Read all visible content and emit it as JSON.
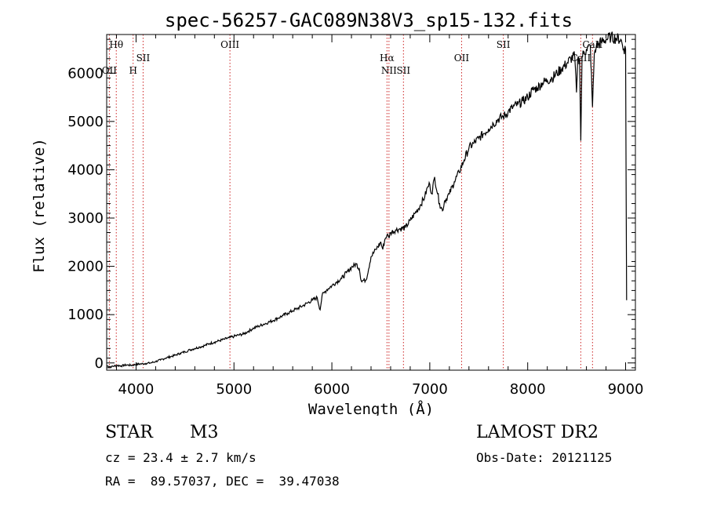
{
  "chart_data": {
    "type": "line",
    "title": "spec-56257-GAC089N38V3_sp15-132.fits",
    "xlabel": "Wavelength (Å)",
    "ylabel": "Flux (relative)",
    "xlim": [
      3700,
      9100
    ],
    "ylim": [
      -150,
      6800
    ],
    "xticks": [
      4000,
      5000,
      6000,
      7000,
      8000,
      9000
    ],
    "yticks": [
      0,
      1000,
      2000,
      3000,
      4000,
      5000,
      6000
    ],
    "grid": false,
    "spectral_lines": [
      {
        "label": "Hθ",
        "wavelength": 3798,
        "row": "top"
      },
      {
        "label": "OII",
        "wavelength": 3727,
        "row": "mid"
      },
      {
        "label": "H",
        "wavelength": 3970,
        "row": "mid"
      },
      {
        "label": "SII",
        "wavelength": 4072,
        "row": "upper"
      },
      {
        "label": "OIII",
        "wavelength": 4959,
        "row": "top"
      },
      {
        "label": "Hα",
        "wavelength": 6563,
        "row": "upper"
      },
      {
        "label": "NII",
        "wavelength": 6583,
        "row": "mid"
      },
      {
        "label": "SII",
        "wavelength": 6731,
        "row": "mid"
      },
      {
        "label": "OII",
        "wavelength": 7325,
        "row": "upper"
      },
      {
        "label": "SII",
        "wavelength": 7751,
        "row": "top"
      },
      {
        "label": "CaII",
        "wavelength": 8542,
        "row": "upper"
      },
      {
        "label": "CaII",
        "wavelength": 8662,
        "row": "top"
      }
    ],
    "series": [
      {
        "x": [
          3700,
          3750,
          3800,
          3850,
          3900,
          3950,
          4000,
          4050,
          4100,
          4150,
          4200,
          4250,
          4300,
          4350,
          4400,
          4450,
          4500,
          4550,
          4600,
          4650,
          4700,
          4750,
          4800,
          4850,
          4900,
          4950,
          5000,
          5050,
          5100,
          5150,
          5200,
          5250,
          5300,
          5350,
          5400,
          5450,
          5500,
          5550,
          5600,
          5650,
          5700,
          5750,
          5800,
          5850,
          5880,
          5900,
          5920,
          5950,
          6000,
          6050,
          6100,
          6150,
          6200,
          6250,
          6280,
          6300,
          6350,
          6400,
          6450,
          6500,
          6520,
          6540,
          6563,
          6580,
          6600,
          6650,
          6700,
          6750,
          6800,
          6850,
          6900,
          6950,
          6980,
          7000,
          7020,
          7050,
          7080,
          7100,
          7130,
          7150,
          7200,
          7250,
          7300,
          7350,
          7400,
          7450,
          7500,
          7550,
          7600,
          7650,
          7700,
          7750,
          7800,
          7850,
          7900,
          7950,
          8000,
          8050,
          8100,
          8150,
          8200,
          8250,
          8300,
          8350,
          8400,
          8440,
          8480,
          8498,
          8510,
          8530,
          8542,
          8555,
          8570,
          8600,
          8640,
          8662,
          8680,
          8700,
          8750,
          8800,
          8850,
          8900,
          8950,
          8980,
          9000,
          9010
        ],
        "y": [
          -60,
          -80,
          -50,
          -60,
          -40,
          -50,
          -30,
          -20,
          -10,
          0,
          30,
          60,
          100,
          130,
          160,
          200,
          230,
          270,
          300,
          330,
          360,
          400,
          430,
          460,
          490,
          520,
          550,
          580,
          600,
          660,
          720,
          760,
          800,
          840,
          880,
          930,
          980,
          1030,
          1080,
          1130,
          1180,
          1240,
          1300,
          1350,
          1100,
          1400,
          1450,
          1520,
          1600,
          1680,
          1750,
          1870,
          1980,
          2050,
          1950,
          1700,
          1720,
          2200,
          2350,
          2500,
          2350,
          2550,
          2650,
          2600,
          2700,
          2750,
          2780,
          2800,
          2950,
          3100,
          3250,
          3450,
          3650,
          3700,
          3500,
          3850,
          3500,
          3300,
          3150,
          3350,
          3500,
          3750,
          3950,
          4200,
          4450,
          4550,
          4650,
          4750,
          4850,
          4950,
          5050,
          5100,
          5200,
          5300,
          5350,
          5420,
          5500,
          5650,
          5700,
          5800,
          5850,
          5900,
          6000,
          6100,
          6200,
          6300,
          6350,
          5600,
          6280,
          6300,
          4600,
          6350,
          6400,
          6500,
          6550,
          5300,
          6400,
          6550,
          6650,
          6700,
          6750,
          6720,
          6700,
          6500,
          6500,
          1300
        ]
      }
    ]
  },
  "info": {
    "object_class": "STAR",
    "subclass": "M3",
    "survey": "LAMOST DR2",
    "redshift_line": "cz = 23.4 ± 2.7 km/s",
    "obs_date_line": "Obs-Date: 20121125",
    "coords_line": "RA =  89.57037, DEC =  39.47038"
  }
}
